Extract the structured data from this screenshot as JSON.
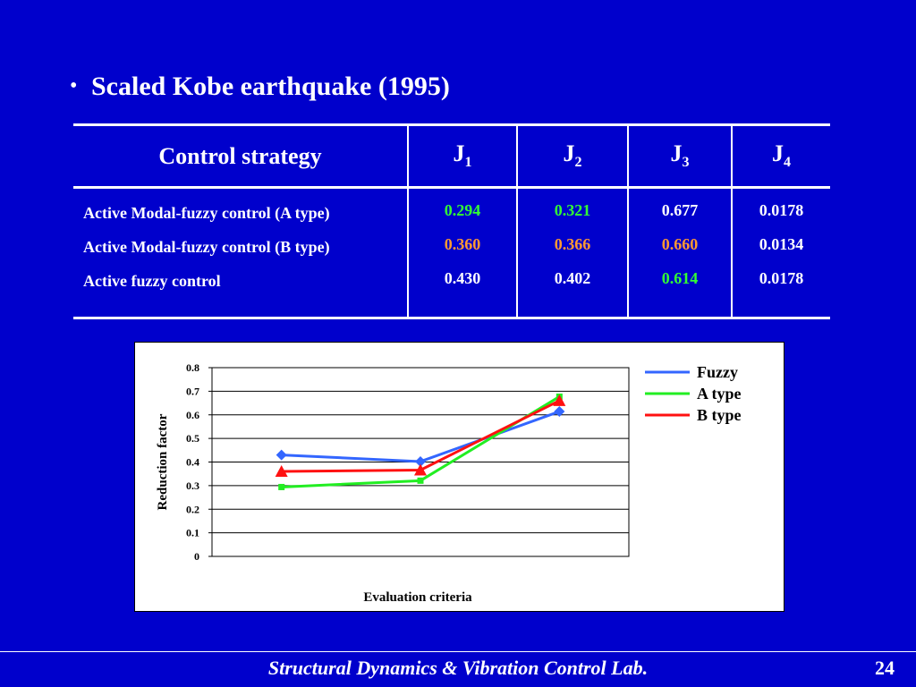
{
  "bullet": {
    "marker": "•",
    "text": "Scaled Kobe earthquake (1995)"
  },
  "table": {
    "header": {
      "strategy": "Control strategy",
      "cols": [
        {
          "base": "J",
          "sub": "1"
        },
        {
          "base": "J",
          "sub": "2"
        },
        {
          "base": "J",
          "sub": "3"
        },
        {
          "base": "J",
          "sub": "4"
        }
      ]
    },
    "rows": [
      {
        "name": "Active Modal-fuzzy control (A type)",
        "values": [
          "0.294",
          "0.321",
          "0.677",
          "0.0178"
        ],
        "colors": [
          "green",
          "green",
          "white",
          "white"
        ]
      },
      {
        "name": "Active Modal-fuzzy control (B type)",
        "values": [
          "0.360",
          "0.366",
          "0.660",
          "0.0134"
        ],
        "colors": [
          "orange",
          "orange",
          "orange",
          "white"
        ]
      },
      {
        "name": "Active fuzzy control",
        "values": [
          "0.430",
          "0.402",
          "0.614",
          "0.0178"
        ],
        "colors": [
          "white",
          "white",
          "green",
          "white"
        ]
      }
    ]
  },
  "chart_data": {
    "type": "line",
    "xlabel": "Evaluation criteria",
    "ylabel": "Reduction factor",
    "ylim": [
      0,
      0.8
    ],
    "yticks": [
      "0",
      "0.1",
      "0.2",
      "0.3",
      "0.4",
      "0.5",
      "0.6",
      "0.7",
      "0.8"
    ],
    "categories": [
      "",
      "",
      ""
    ],
    "grid": true,
    "legend": "top-right",
    "series": [
      {
        "name": "Fuzzy",
        "values": [
          0.43,
          0.402,
          0.614
        ],
        "color": "#3366ff",
        "marker": "diamond"
      },
      {
        "name": "A type",
        "values": [
          0.294,
          0.321,
          0.677
        ],
        "color": "#22ee22",
        "marker": "square"
      },
      {
        "name": "B type",
        "values": [
          0.36,
          0.366,
          0.66
        ],
        "color": "#ff1111",
        "marker": "triangle"
      }
    ]
  },
  "footer": {
    "lab": "Structural Dynamics & Vibration Control Lab.",
    "page": "24"
  }
}
